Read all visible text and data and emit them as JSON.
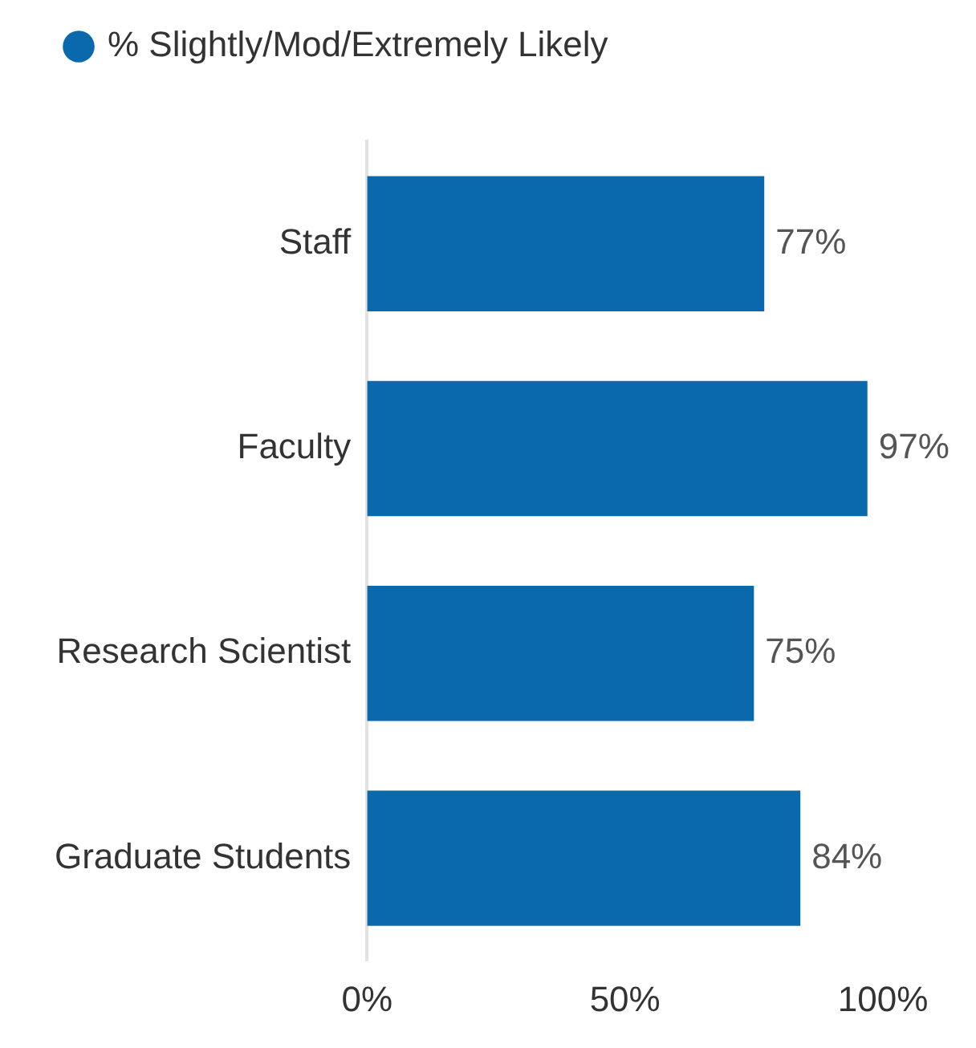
{
  "chart_data": {
    "type": "bar",
    "orientation": "horizontal",
    "categories": [
      "Staff",
      "Faculty",
      "Research Scientist",
      "Graduate Students"
    ],
    "series": [
      {
        "name": "% Slightly/Mod/Extremely Likely",
        "color": "#0a69ad",
        "values": [
          77,
          97,
          75,
          84
        ],
        "value_labels": [
          "77%",
          "97%",
          "75%",
          "84%"
        ]
      }
    ],
    "xlim": [
      0,
      100
    ],
    "xticks": [
      {
        "value": 0,
        "label": "0%"
      },
      {
        "value": 50,
        "label": "50%"
      },
      {
        "value": 100,
        "label": "100%"
      }
    ],
    "grid": false,
    "legend": "top left",
    "marker": "circle"
  }
}
